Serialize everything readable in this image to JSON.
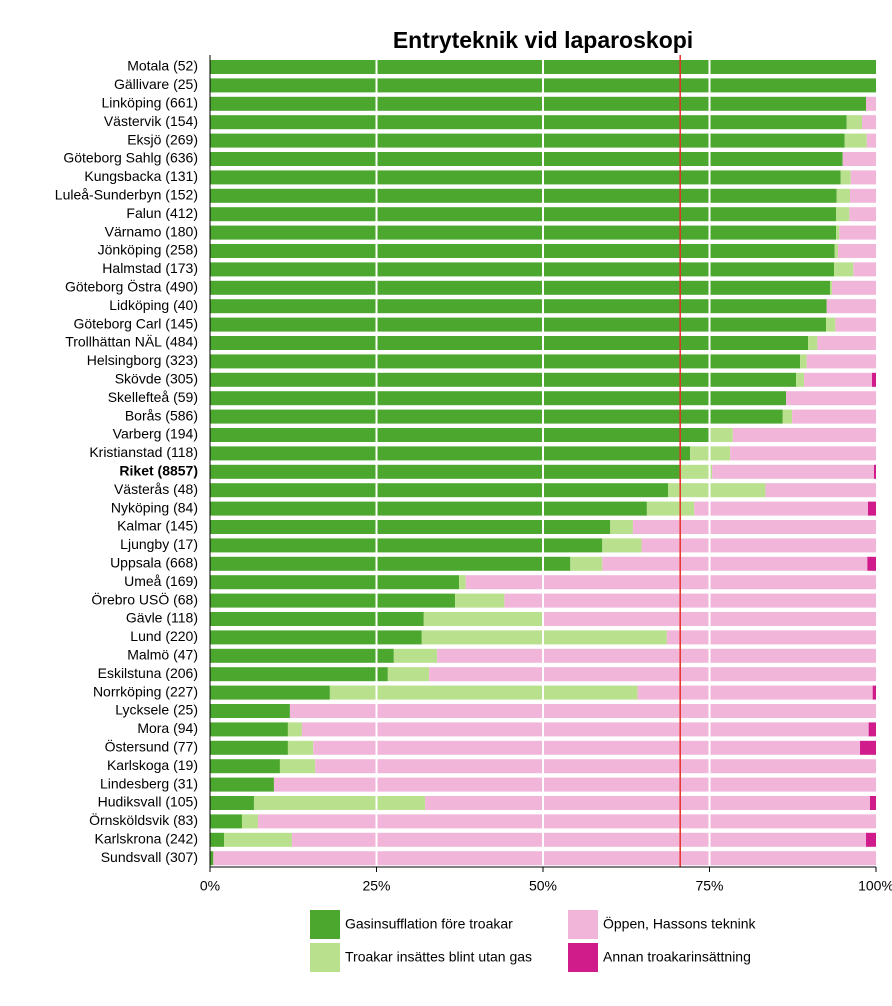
{
  "chart_data": {
    "type": "stacked_barh",
    "title": "Entryteknik vid laparoskopi",
    "categories": [
      "Motala (52)",
      "Gällivare (25)",
      "Linköping (661)",
      "Västervik (154)",
      "Eksjö (269)",
      "Göteborg Sahlg (636)",
      "Kungsbacka (131)",
      "Luleå-Sunderbyn (152)",
      "Falun (412)",
      "Värnamo (180)",
      "Jönköping (258)",
      "Halmstad (173)",
      "Göteborg Östra (490)",
      "Lidköping (40)",
      "Göteborg Carl (145)",
      "Trollhättan NÄL (484)",
      "Helsingborg (323)",
      "Skövde (305)",
      "Skellefteå (59)",
      "Borås (586)",
      "Varberg (194)",
      "Kristianstad (118)",
      "Riket (8857)",
      "Västerås (48)",
      "Nyköping (84)",
      "Kalmar (145)",
      "Ljungby (17)",
      "Uppsala (668)",
      "Umeå (169)",
      "Örebro USÖ (68)",
      "Gävle (118)",
      "Lund (220)",
      "Malmö (47)",
      "Eskilstuna (206)",
      "Norrköping (227)",
      "Lycksele (25)",
      "Mora (94)",
      "Östersund (77)",
      "Karlskoga (19)",
      "Lindesberg (31)",
      "Hudiksvall (105)",
      "Örnsköldsvik (83)",
      "Karlskrona (242)",
      "Sundsvall (307)"
    ],
    "emphasized_categories": [
      22
    ],
    "series": [
      {
        "name": "Gasinsufflation före troakar",
        "color": "#4ca72e",
        "values": [
          100,
          100,
          98.5,
          95.6,
          95.3,
          95.0,
          94.7,
          94.1,
          94.0,
          94.0,
          93.8,
          93.7,
          93.1,
          92.6,
          92.5,
          89.8,
          88.6,
          88.0,
          86.5,
          86.0,
          74.9,
          72.1,
          70.6,
          68.8,
          65.6,
          60.1,
          58.9,
          54.1,
          37.4,
          36.8,
          32.1,
          31.8,
          27.6,
          26.7,
          18.0,
          12.0,
          11.7,
          11.7,
          10.5,
          9.6,
          6.6,
          4.8,
          2.1,
          0.5
        ]
      },
      {
        "name": "Troakar insättes blint utan gas",
        "color": "#b9e08c",
        "values": [
          0,
          0,
          0,
          2.3,
          3.3,
          0,
          1.5,
          2.0,
          2.0,
          0.5,
          0.5,
          2.9,
          0.3,
          0,
          1.4,
          1.4,
          1.0,
          1.2,
          0,
          1.4,
          3.6,
          6.0,
          4.8,
          14.6,
          7.1,
          3.4,
          5.9,
          4.8,
          1.0,
          7.4,
          17.9,
          36.8,
          6.5,
          6.2,
          46.2,
          0,
          2.1,
          3.8,
          5.3,
          0,
          25.7,
          2.4,
          10.2,
          0
        ]
      },
      {
        "name": "Öppen, Hassons teknink",
        "color": "#f2b5da",
        "values": [
          0,
          0,
          1.5,
          2.1,
          1.4,
          5.0,
          3.8,
          3.9,
          4.0,
          5.5,
          5.7,
          3.4,
          6.6,
          7.4,
          6.1,
          8.8,
          10.4,
          10.2,
          13.5,
          12.6,
          21.5,
          21.9,
          24.3,
          16.6,
          26.1,
          36.5,
          35.2,
          39.8,
          61.6,
          55.8,
          50.0,
          31.4,
          65.9,
          67.1,
          35.3,
          88.0,
          85.1,
          82.1,
          84.2,
          90.4,
          66.8,
          92.8,
          86.2,
          99.5
        ]
      },
      {
        "name": "Annan troakarinsättning",
        "color": "#d01c8b",
        "values": [
          0,
          0,
          0,
          0,
          0,
          0,
          0,
          0,
          0,
          0,
          0,
          0,
          0,
          0,
          0,
          0,
          0,
          0.6,
          0,
          0,
          0,
          0,
          0.3,
          0,
          1.2,
          0,
          0,
          1.3,
          0,
          0,
          0,
          0,
          0,
          0,
          0.5,
          0,
          1.1,
          2.4,
          0,
          0,
          0.9,
          0,
          1.5,
          0
        ]
      }
    ],
    "xlim": [
      0,
      100
    ],
    "xticks": [
      {
        "value": 0,
        "label": "0%"
      },
      {
        "value": 25,
        "label": "25%"
      },
      {
        "value": 50,
        "label": "50%"
      },
      {
        "value": 75,
        "label": "75%"
      },
      {
        "value": 100,
        "label": "100%"
      }
    ],
    "grid": true,
    "reference_line": {
      "value": 70.6,
      "color": "#e8302a"
    }
  }
}
